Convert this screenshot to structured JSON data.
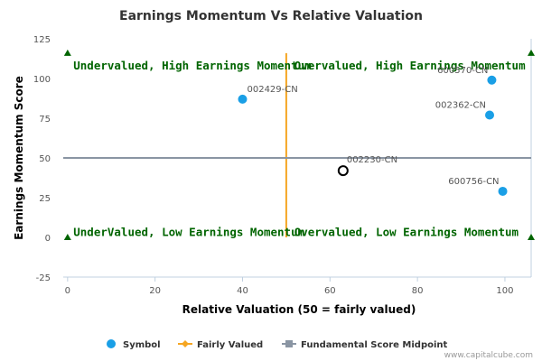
{
  "chart_data": {
    "type": "scatter",
    "title": "Earnings Momentum Vs Relative Valuation",
    "xlabel": "Relative Valuation (50 = fairly valued)",
    "ylabel": "Earnings Momentum Score",
    "xlim": [
      -1,
      106
    ],
    "ylim": [
      -25,
      125
    ],
    "xticks": [
      0,
      20,
      40,
      60,
      80,
      100
    ],
    "yticks": [
      -25,
      0,
      25,
      50,
      75,
      100,
      125
    ],
    "grid": false,
    "legend_position": "bottom",
    "series": [
      {
        "name": "Symbol",
        "color": "#1a9fe6",
        "points": [
          {
            "label": "002429-CN",
            "x": 40,
            "y": 87
          },
          {
            "label": "600570-CN",
            "x": 97,
            "y": 99
          },
          {
            "label": "002362-CN",
            "x": 96.5,
            "y": 77
          },
          {
            "label": "600756-CN",
            "x": 99.5,
            "y": 29
          }
        ]
      },
      {
        "name": "Highlighted",
        "color": "#000000",
        "points": [
          {
            "label": "002230-CN",
            "x": 63,
            "y": 42
          }
        ]
      },
      {
        "name": "Fairly Valued",
        "color": "#f5a623",
        "line": {
          "x": 50,
          "y0": 0,
          "y1": 116
        }
      },
      {
        "name": "Fundamental Score Midpoint",
        "color": "#8a95a3",
        "line": {
          "y": 50,
          "x0": -1,
          "x1": 106
        }
      }
    ],
    "quadrants": [
      {
        "text": "Undervalued, High Earnings Momentum",
        "x": 0.5,
        "y": 108
      },
      {
        "text": "Overvalued, High Earnings Momentum",
        "x": 51,
        "y": 108
      },
      {
        "text": "UnderValued, Low Earnings Momentum",
        "x": 0.5,
        "y": 3
      },
      {
        "text": "Overvalued, Low Earnings Momentum",
        "x": 51,
        "y": 3
      }
    ],
    "corner_markers": [
      {
        "x": 0,
        "y": 116
      },
      {
        "x": 106,
        "y": 116
      },
      {
        "x": 0,
        "y": 0
      },
      {
        "x": 106,
        "y": 0
      }
    ],
    "marker_color": "#006400",
    "credit": "www.capitalcube.com"
  }
}
